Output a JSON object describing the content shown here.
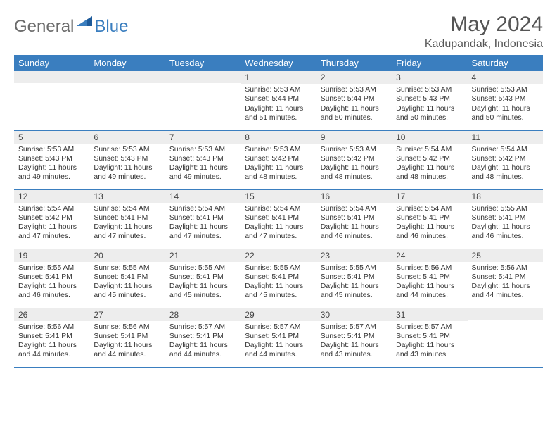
{
  "branding": {
    "word1": "General",
    "word2": "Blue",
    "word1_color": "#6b6b6b",
    "word2_color": "#3a7ebf",
    "icon_color": "#1d5a9a"
  },
  "title": "May 2024",
  "location": "Kadupandak, Indonesia",
  "colors": {
    "header_bg": "#3a7ebf",
    "header_text": "#ffffff",
    "daynum_bg": "#ededed",
    "row_border": "#3a7ebf",
    "page_bg": "#ffffff"
  },
  "weekdays": [
    "Sunday",
    "Monday",
    "Tuesday",
    "Wednesday",
    "Thursday",
    "Friday",
    "Saturday"
  ],
  "cells": [
    {
      "n": "",
      "t": ""
    },
    {
      "n": "",
      "t": ""
    },
    {
      "n": "",
      "t": ""
    },
    {
      "n": "1",
      "t": "Sunrise: 5:53 AM\nSunset: 5:44 PM\nDaylight: 11 hours and 51 minutes."
    },
    {
      "n": "2",
      "t": "Sunrise: 5:53 AM\nSunset: 5:44 PM\nDaylight: 11 hours and 50 minutes."
    },
    {
      "n": "3",
      "t": "Sunrise: 5:53 AM\nSunset: 5:43 PM\nDaylight: 11 hours and 50 minutes."
    },
    {
      "n": "4",
      "t": "Sunrise: 5:53 AM\nSunset: 5:43 PM\nDaylight: 11 hours and 50 minutes."
    },
    {
      "n": "5",
      "t": "Sunrise: 5:53 AM\nSunset: 5:43 PM\nDaylight: 11 hours and 49 minutes."
    },
    {
      "n": "6",
      "t": "Sunrise: 5:53 AM\nSunset: 5:43 PM\nDaylight: 11 hours and 49 minutes."
    },
    {
      "n": "7",
      "t": "Sunrise: 5:53 AM\nSunset: 5:43 PM\nDaylight: 11 hours and 49 minutes."
    },
    {
      "n": "8",
      "t": "Sunrise: 5:53 AM\nSunset: 5:42 PM\nDaylight: 11 hours and 48 minutes."
    },
    {
      "n": "9",
      "t": "Sunrise: 5:53 AM\nSunset: 5:42 PM\nDaylight: 11 hours and 48 minutes."
    },
    {
      "n": "10",
      "t": "Sunrise: 5:54 AM\nSunset: 5:42 PM\nDaylight: 11 hours and 48 minutes."
    },
    {
      "n": "11",
      "t": "Sunrise: 5:54 AM\nSunset: 5:42 PM\nDaylight: 11 hours and 48 minutes."
    },
    {
      "n": "12",
      "t": "Sunrise: 5:54 AM\nSunset: 5:42 PM\nDaylight: 11 hours and 47 minutes."
    },
    {
      "n": "13",
      "t": "Sunrise: 5:54 AM\nSunset: 5:41 PM\nDaylight: 11 hours and 47 minutes."
    },
    {
      "n": "14",
      "t": "Sunrise: 5:54 AM\nSunset: 5:41 PM\nDaylight: 11 hours and 47 minutes."
    },
    {
      "n": "15",
      "t": "Sunrise: 5:54 AM\nSunset: 5:41 PM\nDaylight: 11 hours and 47 minutes."
    },
    {
      "n": "16",
      "t": "Sunrise: 5:54 AM\nSunset: 5:41 PM\nDaylight: 11 hours and 46 minutes."
    },
    {
      "n": "17",
      "t": "Sunrise: 5:54 AM\nSunset: 5:41 PM\nDaylight: 11 hours and 46 minutes."
    },
    {
      "n": "18",
      "t": "Sunrise: 5:55 AM\nSunset: 5:41 PM\nDaylight: 11 hours and 46 minutes."
    },
    {
      "n": "19",
      "t": "Sunrise: 5:55 AM\nSunset: 5:41 PM\nDaylight: 11 hours and 46 minutes."
    },
    {
      "n": "20",
      "t": "Sunrise: 5:55 AM\nSunset: 5:41 PM\nDaylight: 11 hours and 45 minutes."
    },
    {
      "n": "21",
      "t": "Sunrise: 5:55 AM\nSunset: 5:41 PM\nDaylight: 11 hours and 45 minutes."
    },
    {
      "n": "22",
      "t": "Sunrise: 5:55 AM\nSunset: 5:41 PM\nDaylight: 11 hours and 45 minutes."
    },
    {
      "n": "23",
      "t": "Sunrise: 5:55 AM\nSunset: 5:41 PM\nDaylight: 11 hours and 45 minutes."
    },
    {
      "n": "24",
      "t": "Sunrise: 5:56 AM\nSunset: 5:41 PM\nDaylight: 11 hours and 44 minutes."
    },
    {
      "n": "25",
      "t": "Sunrise: 5:56 AM\nSunset: 5:41 PM\nDaylight: 11 hours and 44 minutes."
    },
    {
      "n": "26",
      "t": "Sunrise: 5:56 AM\nSunset: 5:41 PM\nDaylight: 11 hours and 44 minutes."
    },
    {
      "n": "27",
      "t": "Sunrise: 5:56 AM\nSunset: 5:41 PM\nDaylight: 11 hours and 44 minutes."
    },
    {
      "n": "28",
      "t": "Sunrise: 5:57 AM\nSunset: 5:41 PM\nDaylight: 11 hours and 44 minutes."
    },
    {
      "n": "29",
      "t": "Sunrise: 5:57 AM\nSunset: 5:41 PM\nDaylight: 11 hours and 44 minutes."
    },
    {
      "n": "30",
      "t": "Sunrise: 5:57 AM\nSunset: 5:41 PM\nDaylight: 11 hours and 43 minutes."
    },
    {
      "n": "31",
      "t": "Sunrise: 5:57 AM\nSunset: 5:41 PM\nDaylight: 11 hours and 43 minutes."
    },
    {
      "n": "",
      "t": ""
    }
  ]
}
